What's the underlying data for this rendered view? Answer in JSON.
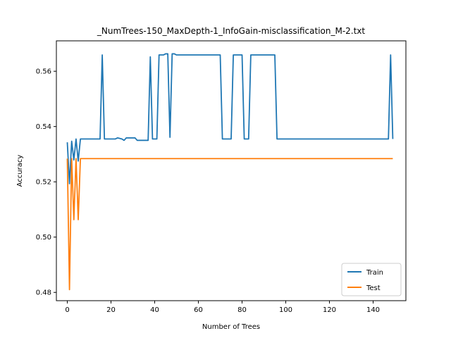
{
  "chart_data": {
    "type": "line",
    "title": "_NumTrees-150_MaxDepth-1_InfoGain-misclassification_M-2.txt",
    "xlabel": "Number of Trees",
    "ylabel": "Accuracy",
    "xlim": [
      -5,
      155
    ],
    "ylim": [
      0.477,
      0.571
    ],
    "xticks": [
      0,
      20,
      40,
      60,
      80,
      100,
      120,
      140
    ],
    "yticks": [
      0.48,
      0.5,
      0.52,
      0.54,
      0.56
    ],
    "ytick_labels": [
      "0.48",
      "0.50",
      "0.52",
      "0.54",
      "0.56"
    ],
    "grid": false,
    "legend_position": "lower-right",
    "series": [
      {
        "name": "Train",
        "color": "#1f77b4",
        "points": [
          [
            0,
            0.5343
          ],
          [
            1,
            0.5193
          ],
          [
            2,
            0.5347
          ],
          [
            3,
            0.5279
          ],
          [
            4,
            0.5355
          ],
          [
            5,
            0.5275
          ],
          [
            6,
            0.5355
          ],
          [
            15,
            0.5355
          ],
          [
            16,
            0.5659
          ],
          [
            17,
            0.5355
          ],
          [
            22,
            0.5355
          ],
          [
            23,
            0.5359
          ],
          [
            25,
            0.5355
          ],
          [
            26,
            0.535
          ],
          [
            27,
            0.5359
          ],
          [
            31,
            0.5359
          ],
          [
            32,
            0.535
          ],
          [
            37,
            0.535
          ],
          [
            38,
            0.5652
          ],
          [
            39,
            0.5355
          ],
          [
            41,
            0.5355
          ],
          [
            42,
            0.5659
          ],
          [
            44,
            0.5659
          ],
          [
            45,
            0.5663
          ],
          [
            46,
            0.5663
          ],
          [
            47,
            0.5361
          ],
          [
            48,
            0.5663
          ],
          [
            49,
            0.5663
          ],
          [
            50,
            0.5659
          ],
          [
            70,
            0.5659
          ],
          [
            71,
            0.5355
          ],
          [
            75,
            0.5355
          ],
          [
            76,
            0.5659
          ],
          [
            80,
            0.5659
          ],
          [
            81,
            0.5355
          ],
          [
            83,
            0.5355
          ],
          [
            84,
            0.5659
          ],
          [
            95,
            0.5659
          ],
          [
            96,
            0.5355
          ],
          [
            147,
            0.5355
          ],
          [
            148,
            0.5659
          ],
          [
            149,
            0.5355
          ]
        ]
      },
      {
        "name": "Test",
        "color": "#ff7f0e",
        "points": [
          [
            0,
            0.5284
          ],
          [
            1,
            0.481
          ],
          [
            2,
            0.5284
          ],
          [
            3,
            0.5063
          ],
          [
            4,
            0.5284
          ],
          [
            5,
            0.5063
          ],
          [
            6,
            0.5284
          ],
          [
            149,
            0.5284
          ]
        ]
      }
    ]
  }
}
